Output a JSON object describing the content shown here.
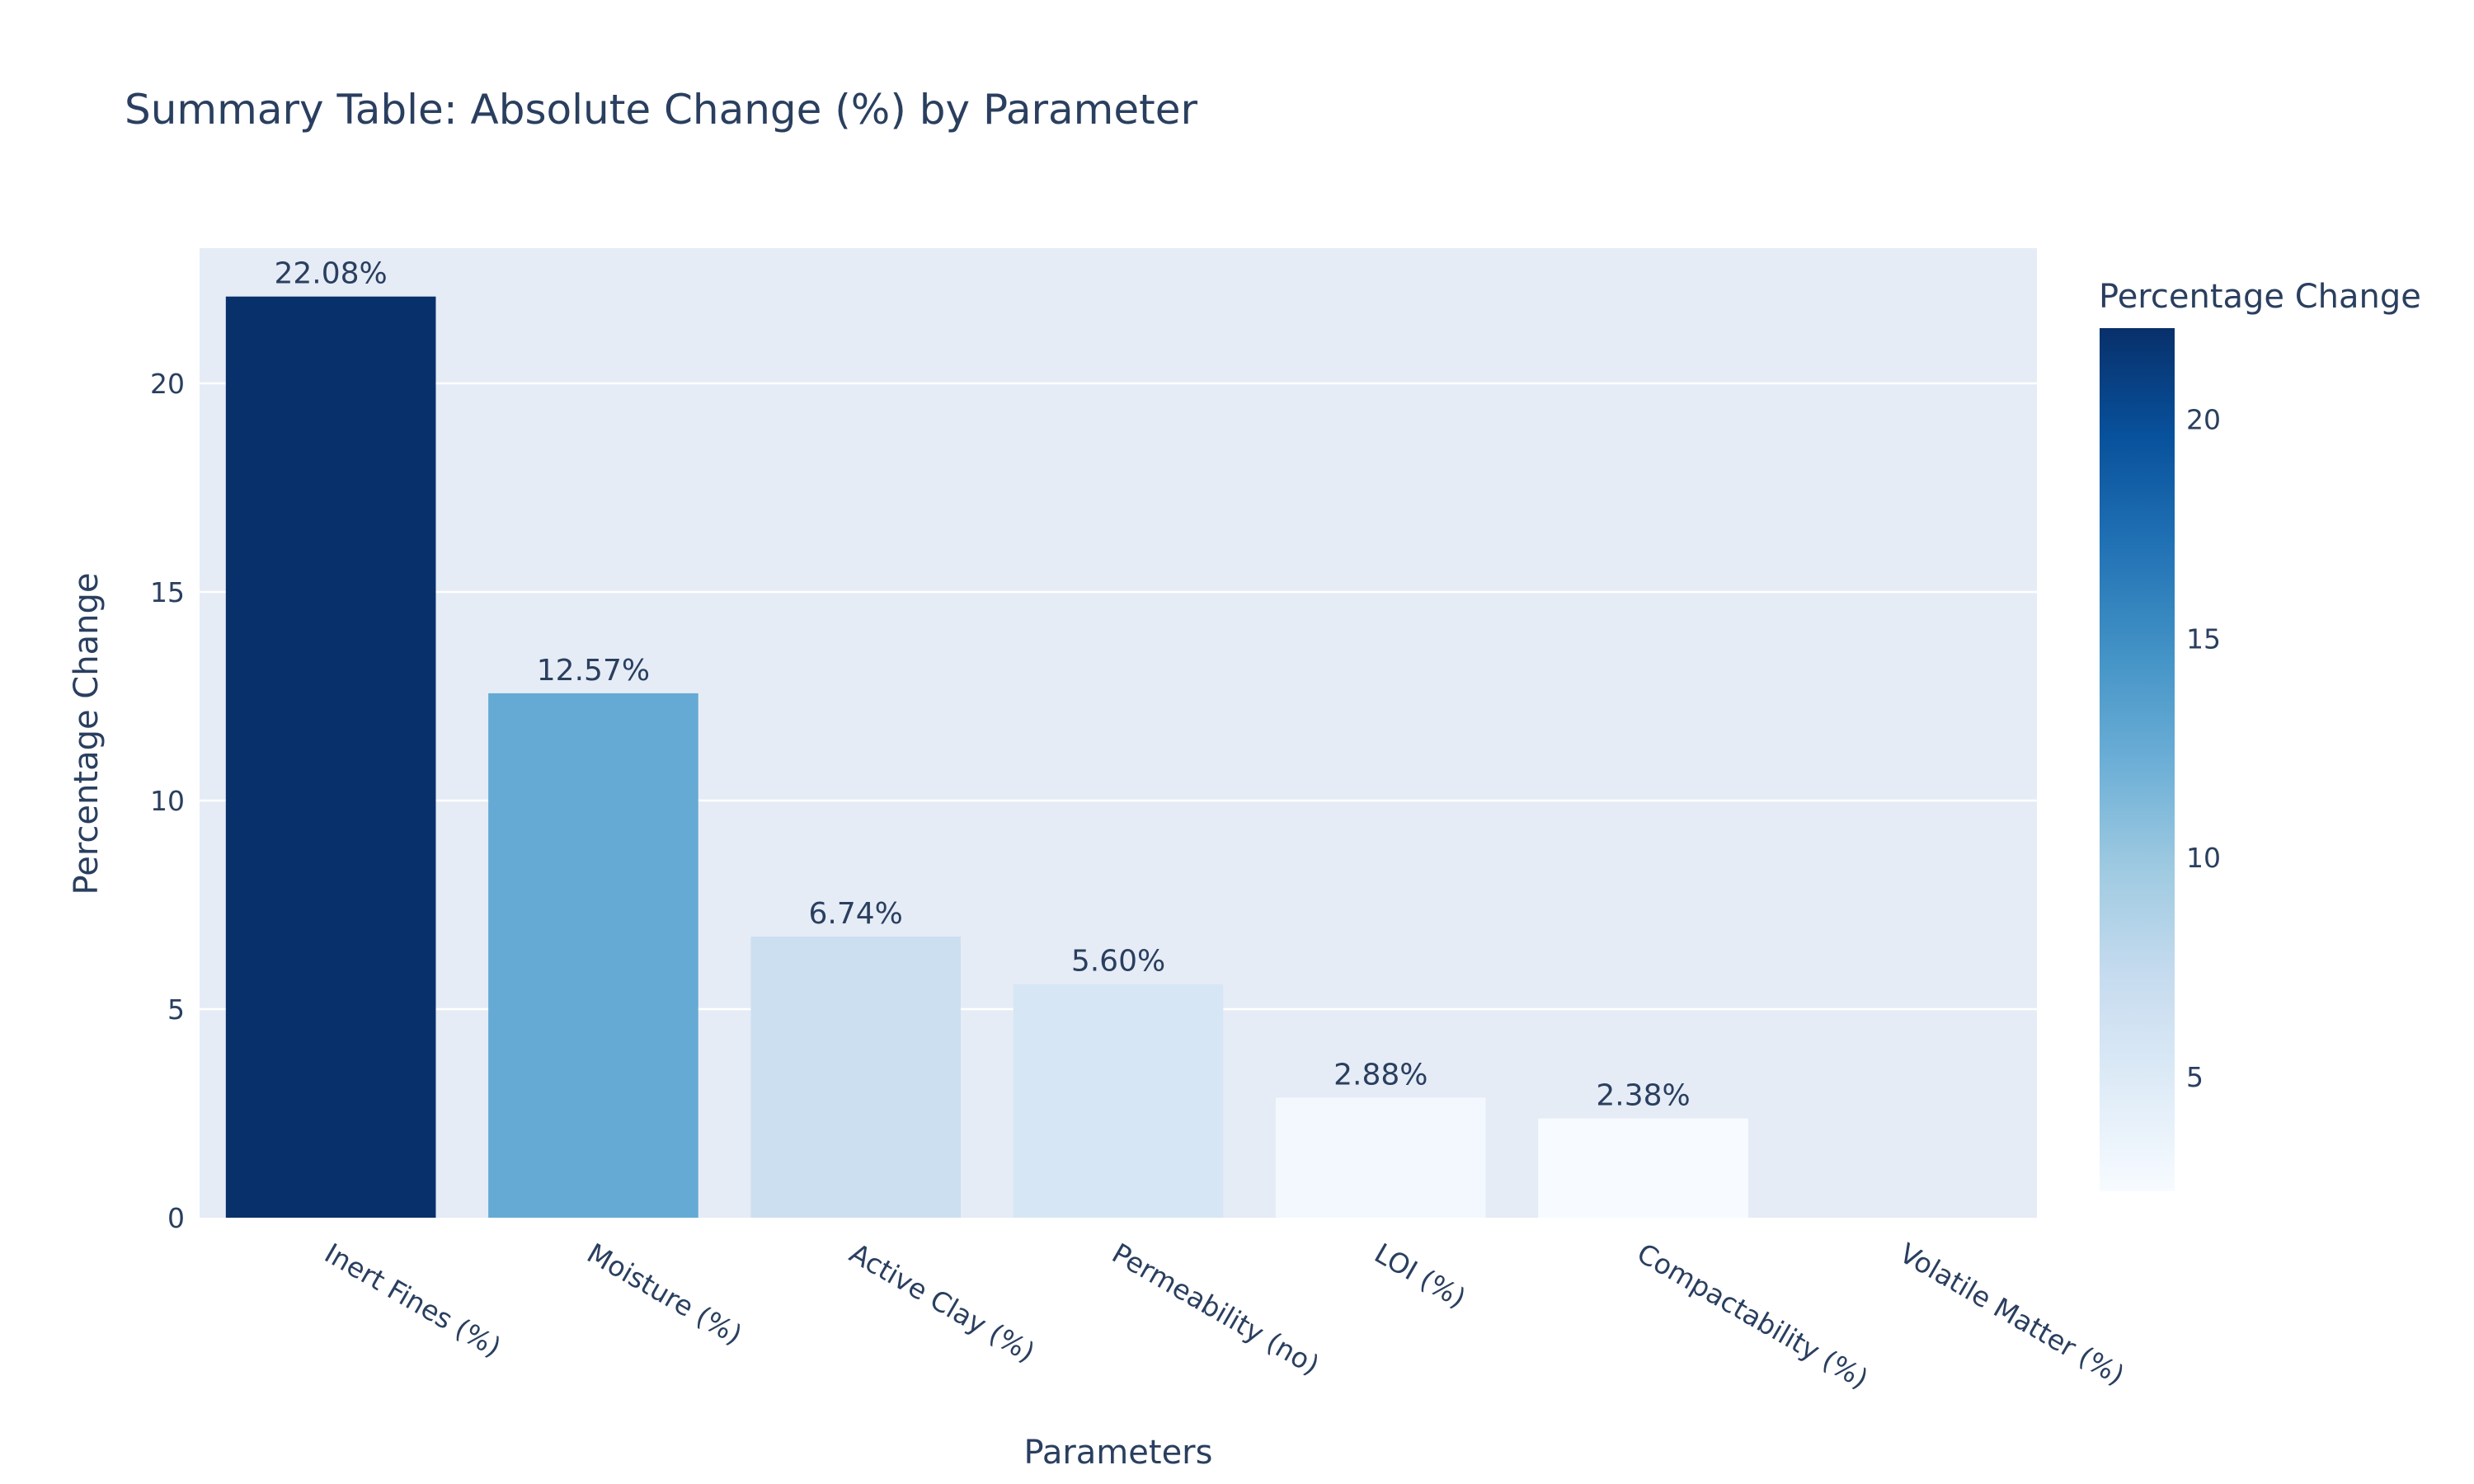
{
  "chart_data": {
    "type": "bar",
    "title": "Summary Table: Absolute Change (%) by Parameter",
    "xlabel": "Parameters",
    "ylabel": "Percentage Change",
    "categories": [
      "Inert Fines (%)",
      "Moisture (%)",
      "Active Clay (%)",
      "Permeability (no)",
      "LOI (%)",
      "Compactability (%)",
      "Volatile Matter (%)"
    ],
    "values": [
      22.08,
      12.57,
      6.74,
      5.6,
      2.88,
      2.38,
      0
    ],
    "value_labels": [
      "22.08%",
      "12.57%",
      "6.74%",
      "5.60%",
      "2.88%",
      "2.38%",
      ""
    ],
    "ylim": [
      0,
      23.24
    ],
    "yticks": [
      0,
      5,
      10,
      15,
      20
    ],
    "grid": true,
    "plot_background": "#e5ecf6",
    "colorscale": "Blues",
    "colorbar": {
      "title": "Percentage Change",
      "range": [
        2.38,
        22.08
      ],
      "ticks": [
        5,
        10,
        15,
        20
      ]
    }
  }
}
